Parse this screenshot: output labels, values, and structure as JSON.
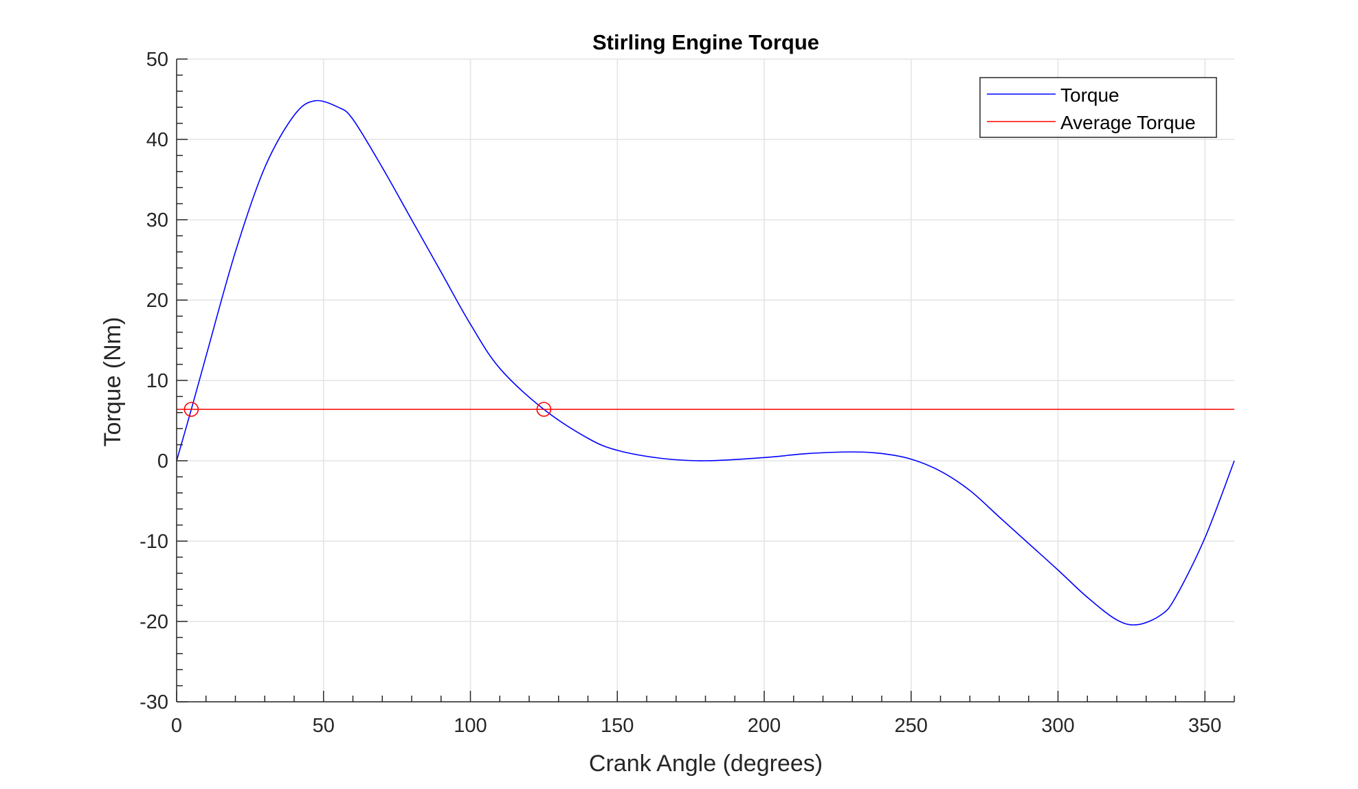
{
  "chart_data": {
    "type": "line",
    "title": "Stirling Engine Torque",
    "xlabel": "Crank Angle (degrees)",
    "ylabel": "Torque (Nm)",
    "xlim": [
      0,
      360
    ],
    "ylim": [
      -30,
      50
    ],
    "xticks": [
      0,
      50,
      100,
      150,
      200,
      250,
      300,
      350
    ],
    "yticks": [
      -30,
      -20,
      -10,
      0,
      10,
      20,
      30,
      40,
      50
    ],
    "xtick_labels": [
      "0",
      "50",
      "100",
      "150",
      "200",
      "250",
      "300",
      "350"
    ],
    "ytick_labels": [
      "-30",
      "-20",
      "-10",
      "0",
      "10",
      "20",
      "30",
      "40",
      "50"
    ],
    "grid": true,
    "legend_position": "top-right",
    "series": [
      {
        "name": "Torque",
        "color": "#0000ff",
        "x": [
          0,
          5,
          10,
          20,
          30,
          40,
          47,
          55,
          60,
          70,
          80,
          90,
          100,
          110,
          125,
          140,
          150,
          165,
          180,
          200,
          215,
          230,
          240,
          250,
          260,
          270,
          280,
          290,
          300,
          310,
          320,
          327,
          335,
          340,
          350,
          360
        ],
        "y": [
          0,
          6.4,
          13,
          26,
          36.5,
          43,
          44.8,
          44,
          42.5,
          36.5,
          30,
          23.5,
          17,
          11.5,
          6.4,
          2.8,
          1.3,
          0.3,
          0,
          0.4,
          0.9,
          1.1,
          0.9,
          0.2,
          -1.3,
          -3.7,
          -7,
          -10.3,
          -13.6,
          -17,
          -19.8,
          -20.4,
          -19.2,
          -17,
          -9.6,
          0
        ]
      },
      {
        "name": "Average Torque",
        "color": "#ff0000",
        "x": [
          0,
          360
        ],
        "y": [
          6.4,
          6.4
        ]
      }
    ],
    "markers": {
      "color": "#ff0000",
      "shape": "circle",
      "points": [
        [
          5,
          6.4
        ],
        [
          125,
          6.4
        ]
      ]
    }
  }
}
